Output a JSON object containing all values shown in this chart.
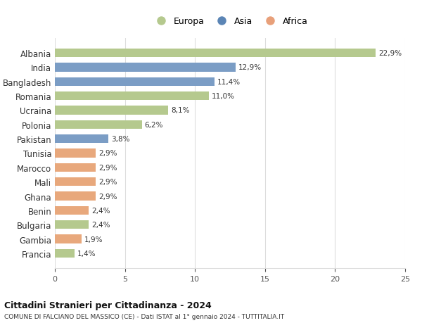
{
  "categories": [
    "Albania",
    "India",
    "Bangladesh",
    "Romania",
    "Ucraina",
    "Polonia",
    "Pakistan",
    "Tunisia",
    "Marocco",
    "Mali",
    "Ghana",
    "Benin",
    "Bulgaria",
    "Gambia",
    "Francia"
  ],
  "values": [
    22.9,
    12.9,
    11.4,
    11.0,
    8.1,
    6.2,
    3.8,
    2.9,
    2.9,
    2.9,
    2.9,
    2.4,
    2.4,
    1.9,
    1.4
  ],
  "labels": [
    "22,9%",
    "12,9%",
    "11,4%",
    "11,0%",
    "8,1%",
    "6,2%",
    "3,8%",
    "2,9%",
    "2,9%",
    "2,9%",
    "2,9%",
    "2,4%",
    "2,4%",
    "1,9%",
    "1,4%"
  ],
  "continents": [
    "Europa",
    "Asia",
    "Asia",
    "Europa",
    "Europa",
    "Europa",
    "Asia",
    "Africa",
    "Africa",
    "Africa",
    "Africa",
    "Africa",
    "Europa",
    "Africa",
    "Europa"
  ],
  "bar_colors": {
    "Europa": "#b5c98e",
    "Asia": "#7b9dc5",
    "Africa": "#e8a87c"
  },
  "legend_colors": {
    "Europa": "#b5c98e",
    "Asia": "#5b85b5",
    "Africa": "#e8a07a"
  },
  "xlim": [
    0,
    25
  ],
  "xticks": [
    0,
    5,
    10,
    15,
    20,
    25
  ],
  "title": "Cittadini Stranieri per Cittadinanza - 2024",
  "subtitle": "COMUNE DI FALCIANO DEL MASSICO (CE) - Dati ISTAT al 1° gennaio 2024 - TUTTITALIA.IT",
  "background_color": "#ffffff",
  "grid_color": "#dddddd",
  "legend_entries": [
    "Europa",
    "Asia",
    "Africa"
  ],
  "bar_height": 0.6
}
